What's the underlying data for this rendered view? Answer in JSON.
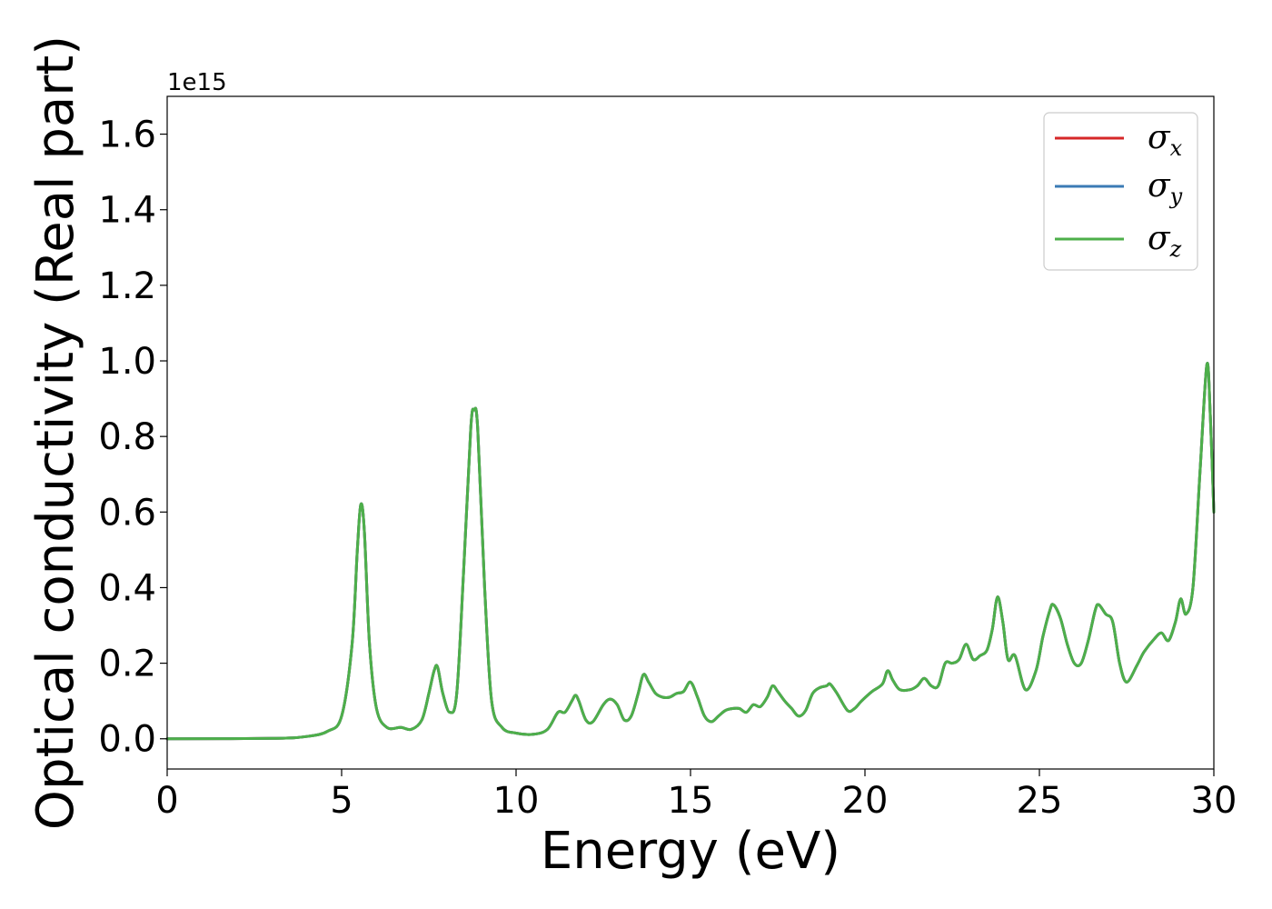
{
  "chart_data": {
    "type": "line",
    "title": "",
    "xlabel": "Energy (eV)",
    "ylabel": "Optical conductivity (Real part)",
    "y_offset_label": "1e15",
    "y_scale": 1000000000000000.0,
    "xlim": [
      0,
      30
    ],
    "ylim": [
      -0.08,
      1.7
    ],
    "x_ticks": [
      "0",
      "5",
      "10",
      "15",
      "20",
      "25",
      "30"
    ],
    "x_tick_values": [
      0,
      5,
      10,
      15,
      20,
      25,
      30
    ],
    "y_ticks": [
      "0.0",
      "0.2",
      "0.4",
      "0.6",
      "0.8",
      "1.0",
      "1.2",
      "1.4",
      "1.6"
    ],
    "y_tick_values": [
      0.0,
      0.2,
      0.4,
      0.6,
      0.8,
      1.0,
      1.2,
      1.4,
      1.6
    ],
    "grid": false,
    "legend_position": "top-right",
    "series": [
      {
        "name": "σ",
        "sub": "x",
        "color": "#d62728"
      },
      {
        "name": "σ",
        "sub": "y",
        "color": "#3b7bb5"
      },
      {
        "name": "σ",
        "sub": "z",
        "color": "#4daf4a"
      }
    ],
    "points": [
      [
        0.0,
        0.0
      ],
      [
        3.0,
        0.001
      ],
      [
        4.0,
        0.006
      ],
      [
        4.6,
        0.02
      ],
      [
        5.0,
        0.06
      ],
      [
        5.3,
        0.25
      ],
      [
        5.45,
        0.5
      ],
      [
        5.55,
        0.62
      ],
      [
        5.65,
        0.55
      ],
      [
        5.8,
        0.25
      ],
      [
        6.0,
        0.08
      ],
      [
        6.3,
        0.03
      ],
      [
        6.7,
        0.03
      ],
      [
        7.0,
        0.025
      ],
      [
        7.3,
        0.05
      ],
      [
        7.5,
        0.12
      ],
      [
        7.65,
        0.18
      ],
      [
        7.75,
        0.19
      ],
      [
        7.9,
        0.12
      ],
      [
        8.1,
        0.07
      ],
      [
        8.3,
        0.12
      ],
      [
        8.5,
        0.45
      ],
      [
        8.7,
        0.82
      ],
      [
        8.8,
        0.87
      ],
      [
        8.9,
        0.82
      ],
      [
        9.1,
        0.4
      ],
      [
        9.3,
        0.1
      ],
      [
        9.6,
        0.03
      ],
      [
        10.0,
        0.015
      ],
      [
        10.5,
        0.012
      ],
      [
        10.9,
        0.025
      ],
      [
        11.2,
        0.07
      ],
      [
        11.4,
        0.07
      ],
      [
        11.6,
        0.1
      ],
      [
        11.7,
        0.115
      ],
      [
        11.8,
        0.1
      ],
      [
        12.0,
        0.05
      ],
      [
        12.2,
        0.045
      ],
      [
        12.5,
        0.09
      ],
      [
        12.7,
        0.105
      ],
      [
        12.9,
        0.09
      ],
      [
        13.1,
        0.05
      ],
      [
        13.3,
        0.06
      ],
      [
        13.5,
        0.12
      ],
      [
        13.65,
        0.17
      ],
      [
        13.8,
        0.15
      ],
      [
        14.0,
        0.12
      ],
      [
        14.2,
        0.11
      ],
      [
        14.4,
        0.11
      ],
      [
        14.6,
        0.12
      ],
      [
        14.8,
        0.125
      ],
      [
        15.0,
        0.15
      ],
      [
        15.2,
        0.11
      ],
      [
        15.4,
        0.06
      ],
      [
        15.6,
        0.045
      ],
      [
        15.8,
        0.06
      ],
      [
        16.0,
        0.075
      ],
      [
        16.2,
        0.08
      ],
      [
        16.4,
        0.08
      ],
      [
        16.6,
        0.07
      ],
      [
        16.8,
        0.09
      ],
      [
        17.0,
        0.085
      ],
      [
        17.2,
        0.11
      ],
      [
        17.35,
        0.14
      ],
      [
        17.5,
        0.125
      ],
      [
        17.7,
        0.1
      ],
      [
        17.9,
        0.08
      ],
      [
        18.1,
        0.06
      ],
      [
        18.3,
        0.075
      ],
      [
        18.5,
        0.12
      ],
      [
        18.7,
        0.135
      ],
      [
        18.9,
        0.14
      ],
      [
        19.0,
        0.145
      ],
      [
        19.2,
        0.12
      ],
      [
        19.5,
        0.075
      ],
      [
        19.7,
        0.08
      ],
      [
        19.9,
        0.1
      ],
      [
        20.2,
        0.125
      ],
      [
        20.5,
        0.145
      ],
      [
        20.65,
        0.18
      ],
      [
        20.8,
        0.155
      ],
      [
        21.0,
        0.13
      ],
      [
        21.3,
        0.13
      ],
      [
        21.5,
        0.14
      ],
      [
        21.7,
        0.16
      ],
      [
        21.9,
        0.14
      ],
      [
        22.1,
        0.14
      ],
      [
        22.3,
        0.2
      ],
      [
        22.5,
        0.2
      ],
      [
        22.7,
        0.21
      ],
      [
        22.9,
        0.25
      ],
      [
        23.1,
        0.21
      ],
      [
        23.3,
        0.22
      ],
      [
        23.5,
        0.235
      ],
      [
        23.65,
        0.29
      ],
      [
        23.8,
        0.375
      ],
      [
        23.95,
        0.31
      ],
      [
        24.1,
        0.21
      ],
      [
        24.3,
        0.22
      ],
      [
        24.6,
        0.13
      ],
      [
        24.9,
        0.18
      ],
      [
        25.1,
        0.27
      ],
      [
        25.3,
        0.34
      ],
      [
        25.4,
        0.355
      ],
      [
        25.6,
        0.32
      ],
      [
        25.8,
        0.25
      ],
      [
        26.0,
        0.2
      ],
      [
        26.2,
        0.2
      ],
      [
        26.4,
        0.26
      ],
      [
        26.6,
        0.34
      ],
      [
        26.7,
        0.355
      ],
      [
        26.9,
        0.33
      ],
      [
        27.1,
        0.31
      ],
      [
        27.3,
        0.2
      ],
      [
        27.5,
        0.15
      ],
      [
        27.8,
        0.195
      ],
      [
        28.0,
        0.23
      ],
      [
        28.3,
        0.265
      ],
      [
        28.5,
        0.28
      ],
      [
        28.7,
        0.26
      ],
      [
        28.9,
        0.31
      ],
      [
        29.05,
        0.37
      ],
      [
        29.2,
        0.33
      ],
      [
        29.4,
        0.4
      ],
      [
        29.6,
        0.7
      ],
      [
        29.8,
        0.99
      ],
      [
        29.9,
        0.85
      ],
      [
        30.0,
        0.6
      ]
    ]
  }
}
